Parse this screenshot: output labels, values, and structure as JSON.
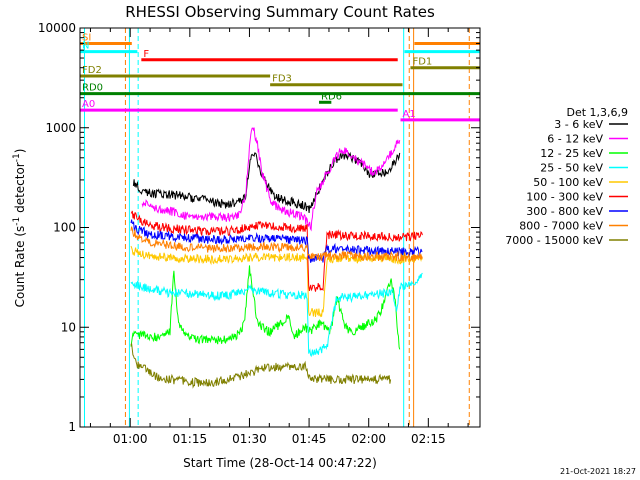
{
  "chart_data": {
    "type": "line",
    "title": "RHESSI Observing Summary Count Rates",
    "xlabel": "Start Time (28-Oct-14 00:47:22)",
    "ylabel_prefix": "Count Rate (s",
    "ylabel_exp1": "-1",
    "ylabel_mid": " detector",
    "ylabel_exp2": "-1",
    "ylabel_suffix": ")",
    "xlim": [
      47.37,
      148.0
    ],
    "ylim": [
      1,
      10000
    ],
    "y_scale": "log",
    "x_ticks": [
      {
        "x": 60,
        "label": "01:00"
      },
      {
        "x": 75,
        "label": "01:15"
      },
      {
        "x": 90,
        "label": "01:30"
      },
      {
        "x": 105,
        "label": "01:45"
      },
      {
        "x": 120,
        "label": "02:00"
      },
      {
        "x": 135,
        "label": "02:15"
      }
    ],
    "y_ticks": [
      {
        "y": 1,
        "label": "1"
      },
      {
        "y": 10,
        "label": "10"
      },
      {
        "y": 100,
        "label": "100"
      },
      {
        "y": 1000,
        "label": "1000"
      },
      {
        "y": 10000,
        "label": "10000"
      }
    ],
    "legend_title": "Det 1,3,6,9",
    "legend_position": "right",
    "series": [
      {
        "name": "3 - 6 keV",
        "color": "#000000",
        "x": [
          60.8,
          63,
          66,
          69,
          72,
          75,
          78,
          81,
          84,
          87,
          89,
          90,
          91,
          92,
          93,
          95,
          97,
          99,
          101,
          102.5,
          104,
          105.5,
          106,
          107,
          108.5,
          109,
          111,
          113,
          115,
          116.5,
          118,
          120,
          122,
          124,
          126,
          127.8
        ],
        "y": [
          290,
          230,
          220,
          215,
          210,
          200,
          190,
          180,
          170,
          180,
          200,
          420,
          580,
          470,
          350,
          240,
          200,
          185,
          180,
          170,
          165,
          150,
          190,
          220,
          290,
          320,
          440,
          530,
          510,
          470,
          440,
          350,
          340,
          360,
          420,
          560
        ]
      },
      {
        "name": "6 - 12 keV",
        "color": "#ff00ff",
        "x": [
          63,
          66,
          69,
          72,
          75,
          78,
          81,
          84,
          87,
          89,
          90,
          90.5,
          91,
          92,
          93,
          95,
          97,
          99,
          101,
          103,
          104,
          105.5,
          106,
          107,
          109,
          111,
          113,
          115,
          117,
          119,
          121,
          123,
          125,
          126.5,
          127.8
        ],
        "y": [
          180,
          160,
          150,
          140,
          130,
          130,
          130,
          125,
          130,
          200,
          650,
          980,
          1000,
          680,
          380,
          200,
          160,
          145,
          140,
          130,
          120,
          100,
          150,
          230,
          320,
          440,
          620,
          540,
          470,
          420,
          360,
          390,
          500,
          650,
          750
        ]
      },
      {
        "name": "12 - 25 keV",
        "color": "#00ff00",
        "x": [
          60.2,
          60.8,
          62,
          65,
          68,
          70,
          71,
          72,
          74,
          77,
          80,
          83,
          86,
          88,
          89,
          90,
          91,
          92,
          95,
          98,
          100,
          101,
          102.5,
          104,
          105.5,
          106,
          108,
          110,
          111,
          112,
          114,
          116,
          118,
          120,
          122,
          124,
          125.5,
          126.5,
          127.8
        ],
        "y": [
          6,
          9,
          8.5,
          8,
          8,
          9,
          38,
          12,
          8,
          7.5,
          7.5,
          7.5,
          8,
          9,
          14,
          40,
          22,
          11,
          9,
          11,
          13,
          8,
          9,
          10,
          9,
          10,
          11,
          9,
          12,
          20,
          10,
          9,
          10,
          11,
          12,
          18,
          30,
          20,
          6
        ]
      },
      {
        "name": "25 - 50 keV",
        "color": "#00ffff",
        "x": [
          60.2,
          62,
          65,
          70,
          75,
          80,
          85,
          90,
          92,
          95,
          100,
          104.5,
          104.9,
          106,
          108,
          109.5,
          112,
          116,
          120,
          124,
          126,
          127,
          128,
          130,
          132,
          133.5
        ],
        "y": [
          27,
          26,
          24,
          22,
          22,
          21,
          21,
          24,
          23,
          22,
          21,
          21,
          5.5,
          5.5,
          6,
          6.5,
          20,
          20,
          21,
          22,
          23,
          15,
          25,
          28,
          30,
          35
        ]
      },
      {
        "name": "50 - 100 keV",
        "color": "#ffc800",
        "x": [
          60.2,
          62,
          65,
          70,
          75,
          80,
          85,
          90,
          95,
          100,
          104.5,
          104.9,
          108.5,
          109.5,
          112,
          118,
          124,
          127,
          130,
          133.5
        ],
        "y": [
          60,
          55,
          52,
          50,
          49,
          48,
          48,
          50,
          50,
          50,
          50,
          14,
          14,
          50,
          48,
          48,
          49,
          48,
          48,
          48
        ]
      },
      {
        "name": "100 - 300 keV",
        "color": "#ff0000",
        "x": [
          60.2,
          62,
          65,
          70,
          75,
          80,
          85,
          90,
          92,
          96,
          100,
          104.5,
          104.9,
          108.5,
          109.5,
          112,
          118,
          124,
          127,
          130,
          133.5
        ],
        "y": [
          140,
          120,
          105,
          98,
          94,
          92,
          92,
          100,
          104,
          102,
          100,
          98,
          25,
          25,
          85,
          84,
          82,
          82,
          80,
          80,
          84
        ]
      },
      {
        "name": "300 - 800 keV",
        "color": "#0000ff",
        "x": [
          60.2,
          62,
          65,
          70,
          75,
          80,
          85,
          90,
          95,
          100,
          104.5,
          104.9,
          108.5,
          109.5,
          115,
          120,
          124,
          127,
          130,
          133.5
        ],
        "y": [
          110,
          95,
          86,
          82,
          78,
          76,
          76,
          78,
          78,
          76,
          74,
          48,
          48,
          62,
          60,
          59,
          58,
          58,
          56,
          58
        ]
      },
      {
        "name": "800 - 7000 keV",
        "color": "#ff8000",
        "x": [
          60.2,
          62,
          65,
          70,
          75,
          80,
          85,
          90,
          95,
          100,
          104.5,
          104.9,
          108.5,
          109.5,
          115,
          120,
          124,
          127,
          130,
          133.5
        ],
        "y": [
          95,
          80,
          72,
          66,
          63,
          62,
          62,
          64,
          64,
          63,
          62,
          50,
          50,
          52,
          52,
          51,
          51,
          51,
          50,
          51
        ]
      },
      {
        "name": "7000 - 15000 keV",
        "color": "#808000",
        "x": [
          60.2,
          61,
          63,
          65,
          68,
          70,
          75,
          80,
          85,
          90,
          95,
          100,
          104.5,
          105,
          110,
          115,
          120,
          124,
          125.5
        ],
        "y": [
          7,
          4.5,
          4,
          3.5,
          3,
          3,
          2.8,
          2.8,
          3,
          3.5,
          4,
          4,
          4,
          3,
          3,
          3,
          3,
          3,
          3
        ]
      }
    ],
    "state_bars": [
      {
        "label": "SI",
        "color": "#ff8000",
        "y": 7000,
        "segments": [
          [
            47.37,
            60.4
          ],
          [
            131.5,
            148.0
          ]
        ]
      },
      {
        "label": "N",
        "color": "#00ffff",
        "y": 5800,
        "segments": [
          [
            47.37,
            61.8
          ],
          [
            129.0,
            148.0
          ]
        ]
      },
      {
        "label": "F",
        "color": "#ff0000",
        "y": 4800,
        "segments": [
          [
            62.8,
            127.3
          ]
        ]
      },
      {
        "label": "FD1",
        "color": "#808000",
        "y": 4000,
        "segments": [
          [
            130.5,
            148.0
          ]
        ]
      },
      {
        "label": "FD2",
        "color": "#808000",
        "y": 3300,
        "segments": [
          [
            47.37,
            95.2
          ]
        ]
      },
      {
        "label": "FD3",
        "color": "#808000",
        "y": 2700,
        "segments": [
          [
            95.2,
            128.5
          ]
        ]
      },
      {
        "label": "RD0",
        "color": "#008000",
        "y": 2200,
        "segments": [
          [
            47.37,
            148.0
          ]
        ]
      },
      {
        "label": "RD6",
        "color": "#008000",
        "y": 1800,
        "segments": [
          [
            107.5,
            110.6
          ]
        ]
      },
      {
        "label": "A0",
        "color": "#ff00ff",
        "y": 1500,
        "segments": [
          [
            47.37,
            127.3
          ]
        ]
      },
      {
        "label": "A1",
        "color": "#ff00ff",
        "y": 1200,
        "segments": [
          [
            128.0,
            148.0
          ]
        ]
      }
    ],
    "vertical_markers": [
      {
        "x": 58.8,
        "color": "#ff8000",
        "style": "dashed"
      },
      {
        "x": 59.8,
        "color": "#00ffff",
        "style": "solid"
      },
      {
        "x": 62.0,
        "color": "#00ffff",
        "style": "dashed"
      },
      {
        "x": 128.8,
        "color": "#00ffff",
        "style": "solid"
      },
      {
        "x": 130.2,
        "color": "#ff8000",
        "style": "dashed"
      },
      {
        "x": 131.3,
        "color": "#ff8000",
        "style": "solid"
      },
      {
        "x": 145.3,
        "color": "#ff8000",
        "style": "dashed"
      },
      {
        "x": 48.5,
        "color": "#00ffff",
        "style": "solid"
      }
    ]
  },
  "footer": {
    "date_stamp": "21-Oct-2021 18:27"
  }
}
